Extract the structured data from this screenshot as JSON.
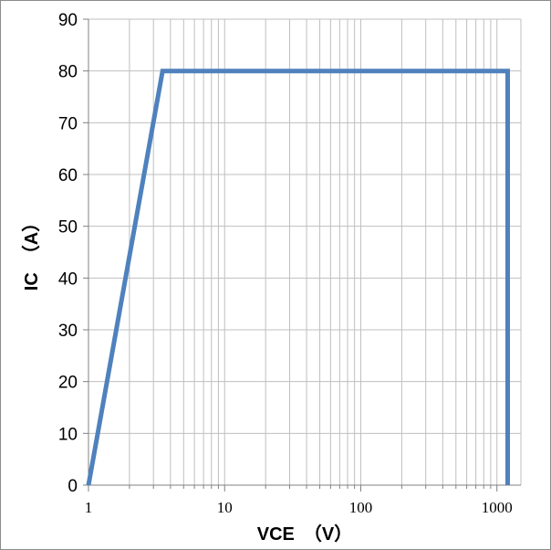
{
  "chart_data": {
    "type": "line",
    "title": "",
    "xlabel": "VCE　（V）",
    "ylabel": "IC　（A）",
    "xscale": "log",
    "xlim": [
      1,
      1500
    ],
    "ylim": [
      0,
      90
    ],
    "xticks": [
      1,
      10,
      100,
      1000
    ],
    "xtick_labels": [
      "1",
      "10",
      "100",
      "1000"
    ],
    "yticks": [
      0,
      10,
      20,
      30,
      40,
      50,
      60,
      70,
      80,
      90
    ],
    "ytick_labels": [
      "0",
      "10",
      "20",
      "30",
      "40",
      "50",
      "60",
      "70",
      "80",
      "90"
    ],
    "grid": true,
    "legend": "none",
    "series": [
      {
        "x": [
          1,
          3.5,
          1200,
          1200
        ],
        "y": [
          0,
          80,
          80,
          0
        ]
      }
    ],
    "colors": {
      "line": "#4f81bd",
      "grid": "#bfbfbf",
      "axis": "#808080"
    }
  }
}
